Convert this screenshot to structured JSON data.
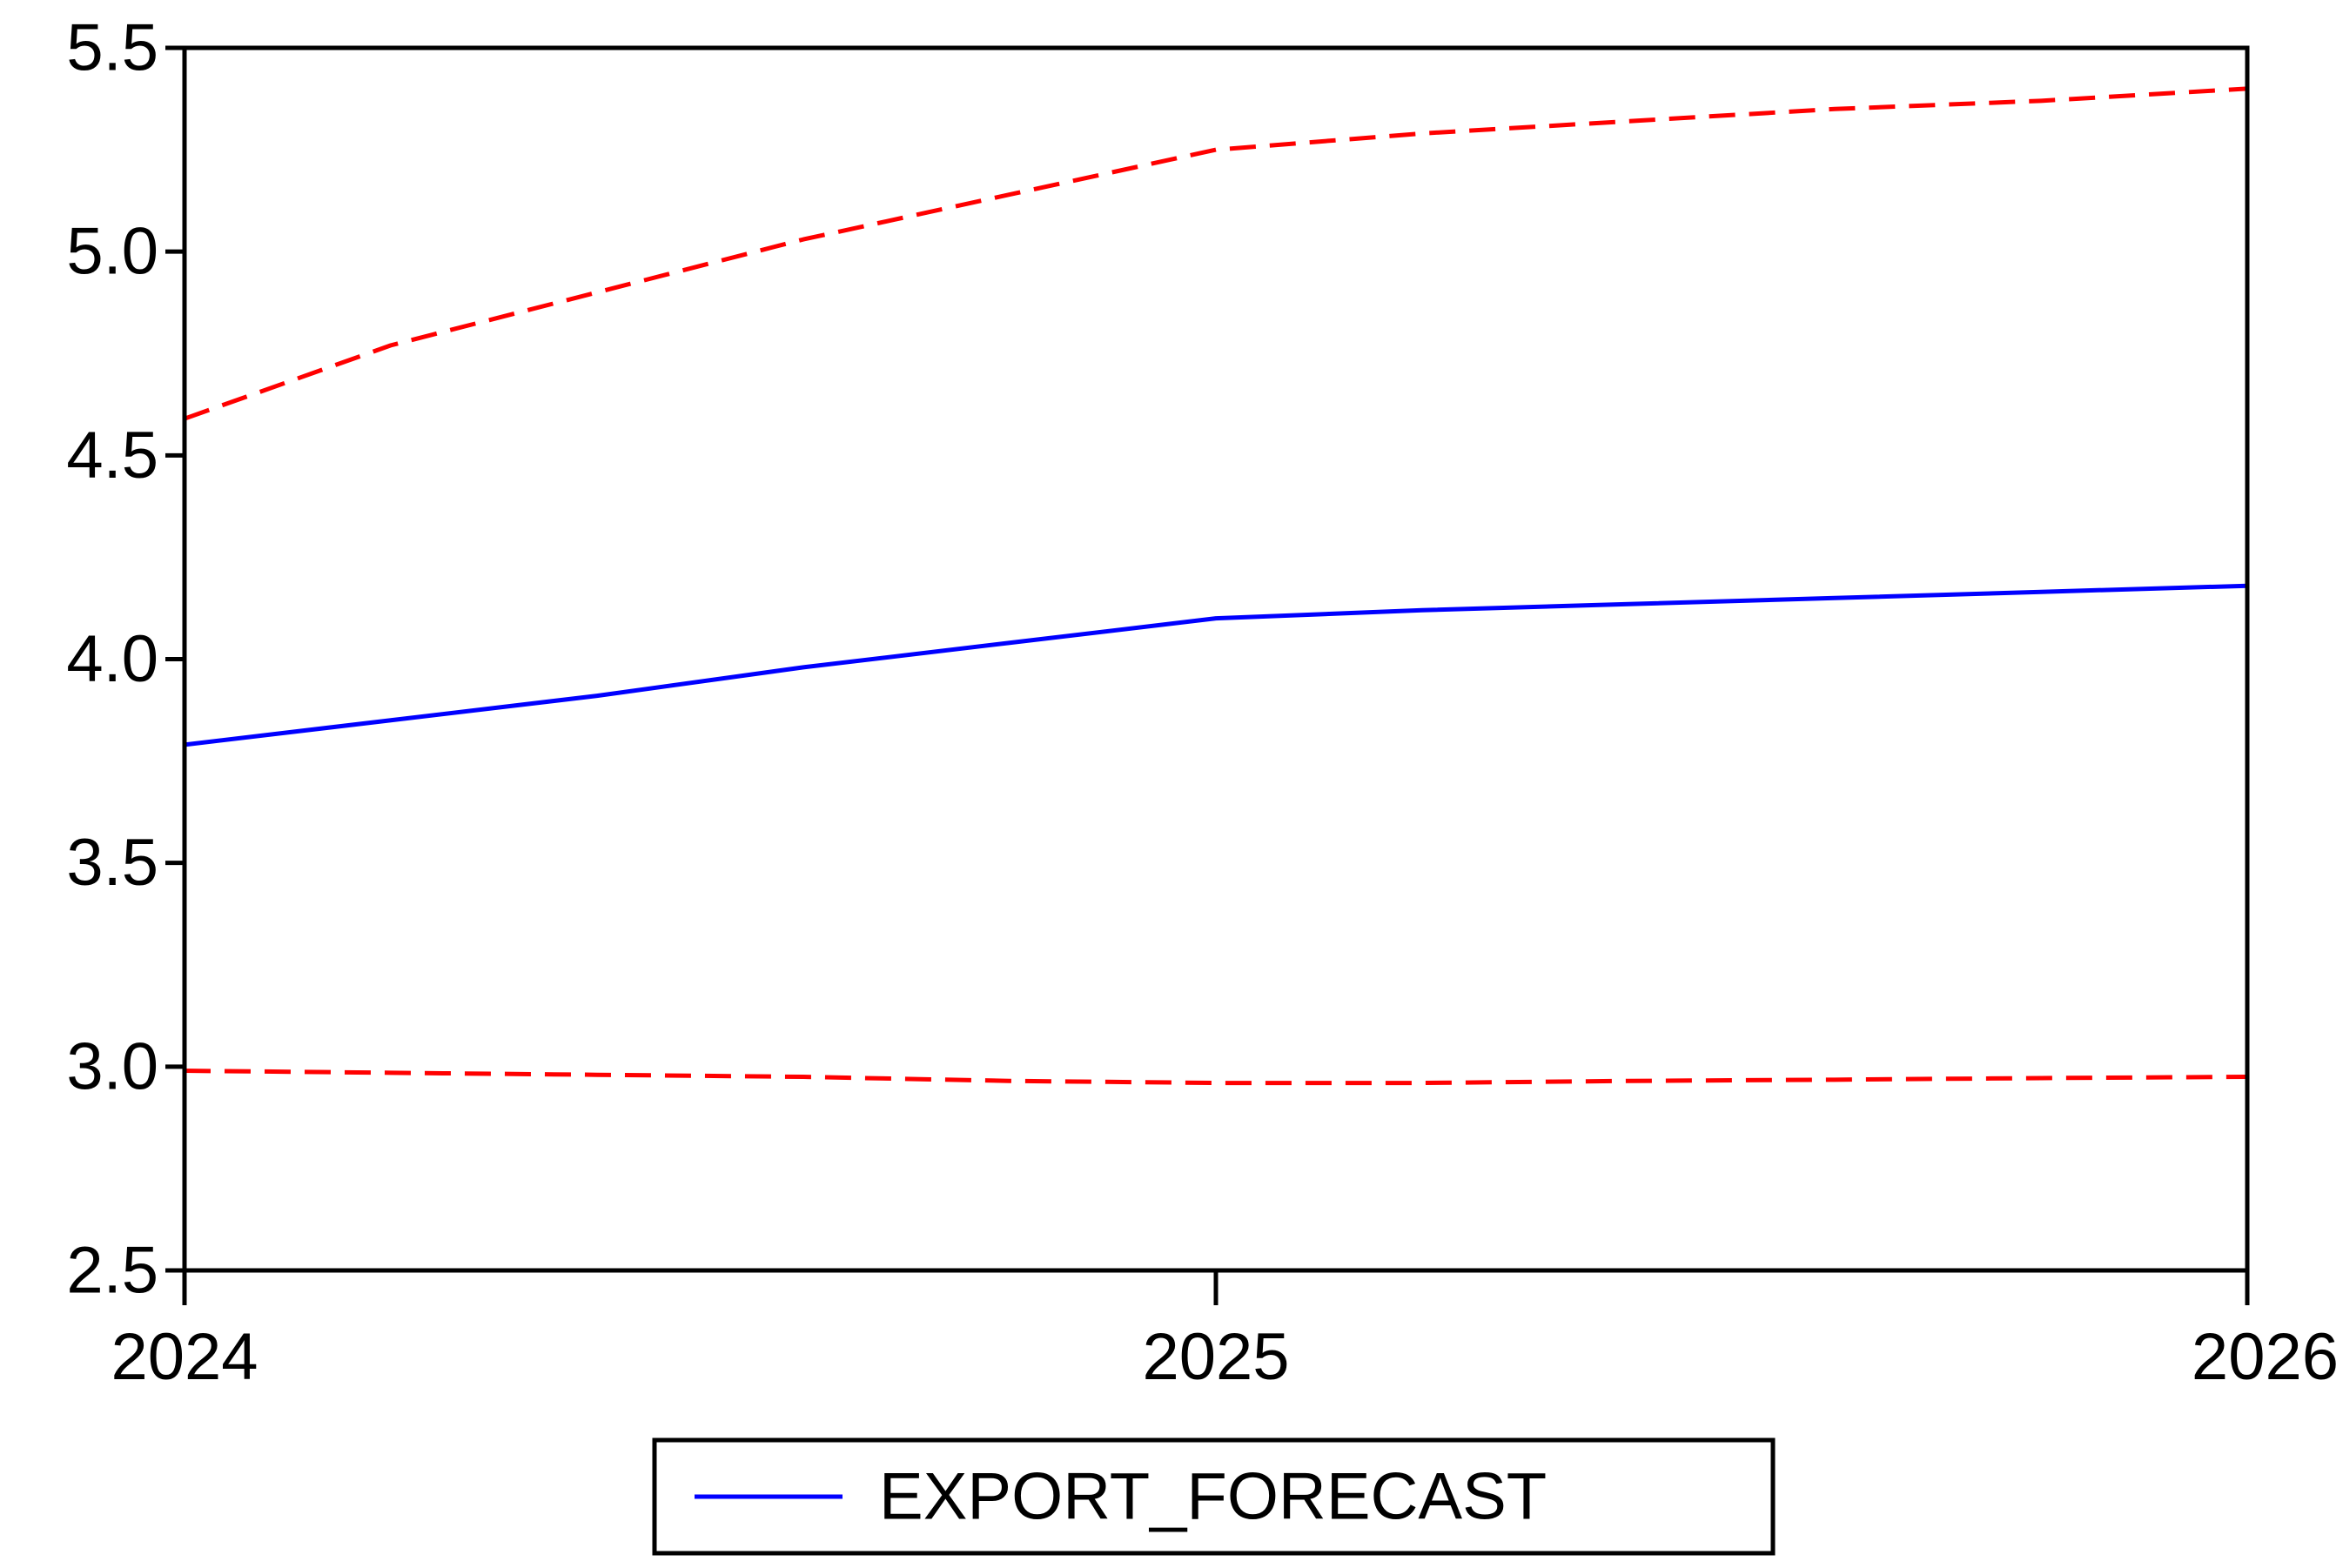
{
  "chart_data": {
    "type": "line",
    "title": "",
    "xlabel": "",
    "ylabel": "",
    "x": [
      2024,
      2024.2,
      2024.4,
      2024.6,
      2024.8,
      2025,
      2025.2,
      2025.4,
      2025.6,
      2025.8,
      2026
    ],
    "xticks": [
      "2024",
      "2025",
      "2026"
    ],
    "xlim": [
      2024,
      2026
    ],
    "ylim": [
      2.5,
      5.5
    ],
    "yticks": [
      "2.5",
      "3.0",
      "3.5",
      "4.0",
      "4.5",
      "5.0",
      "5.5"
    ],
    "grid": false,
    "legend_position": "bottom-center",
    "series": [
      {
        "name": "EXPORT_FORECAST",
        "style": "solid",
        "color": "#0000ff",
        "values": [
          3.79,
          3.85,
          3.91,
          3.98,
          4.04,
          4.1,
          4.12,
          4.135,
          4.15,
          4.165,
          4.18
        ]
      },
      {
        "style": "dashed",
        "color": "#ff0000",
        "values": [
          4.59,
          4.77,
          4.9,
          5.03,
          5.14,
          5.25,
          5.29,
          5.32,
          5.35,
          5.37,
          5.4
        ]
      },
      {
        "style": "dashed",
        "color": "#ff0000",
        "values": [
          2.99,
          2.985,
          2.98,
          2.975,
          2.965,
          2.96,
          2.96,
          2.965,
          2.968,
          2.972,
          2.975
        ]
      }
    ]
  }
}
